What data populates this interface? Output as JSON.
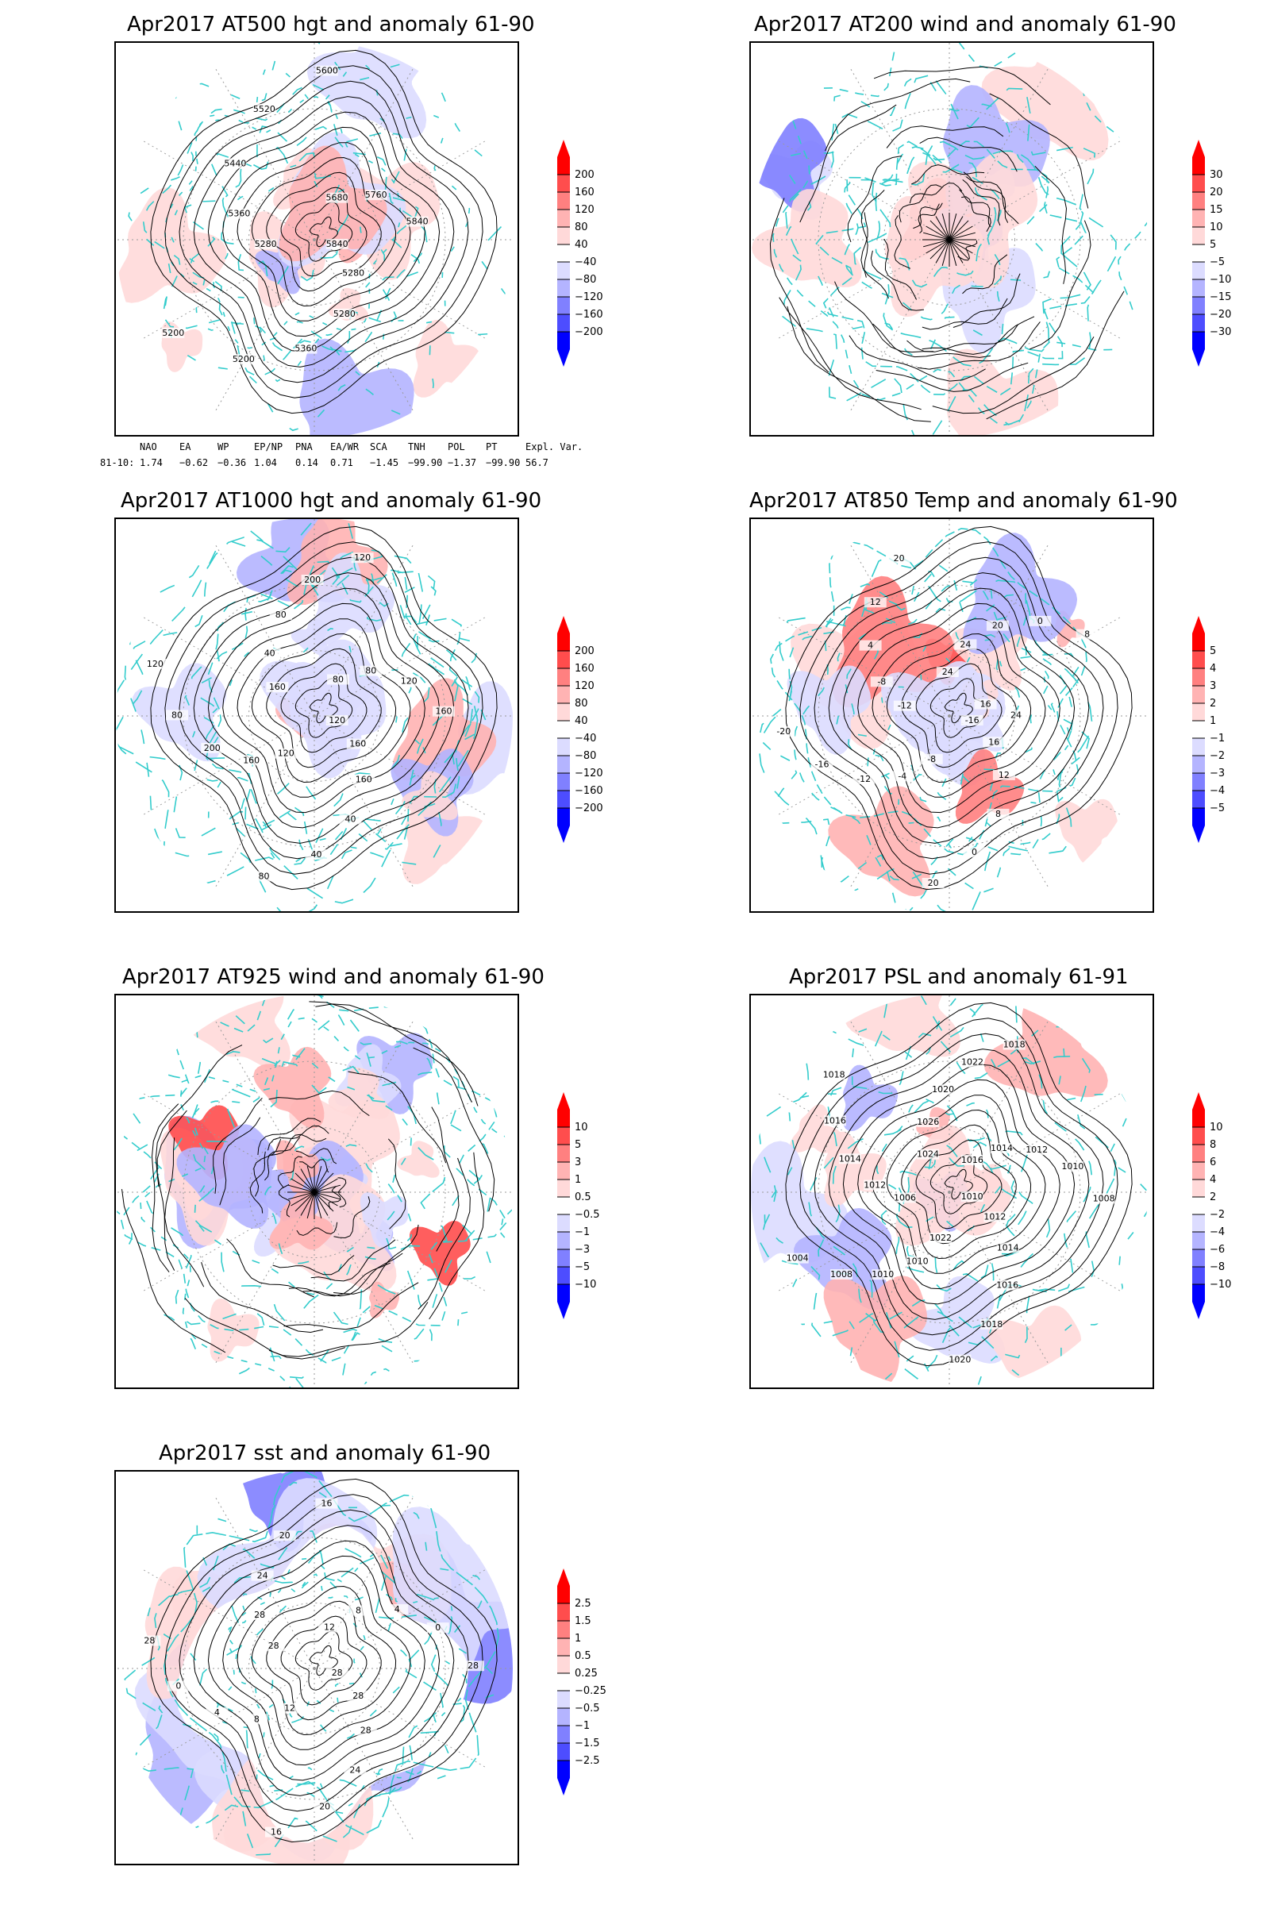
{
  "colors": {
    "coast": "#33cccc",
    "contour": "#000000",
    "pos": [
      "#ffd9d9",
      "#ffb3b3",
      "#ff8080",
      "#ff4d4d",
      "#ff0000"
    ],
    "neg": [
      "#dcdcff",
      "#b4b4ff",
      "#8080ff",
      "#4d4dff",
      "#0000ff"
    ],
    "grid": "#9a9a9a"
  },
  "panels": [
    {
      "title": "Apr2017 AT500 hgt and anomaly 61-90",
      "kind": "contour",
      "colorbar": [
        "200",
        "160",
        "120",
        "80",
        "40",
        "−40",
        "−80",
        "−120",
        "−160",
        "−200"
      ],
      "contour_labels": [
        "5840",
        "5280",
        "5280",
        "5360",
        "5200",
        "5200",
        "5280",
        "5360",
        "5440",
        "5520",
        "5600",
        "5680",
        "5760",
        "5840"
      ]
    },
    {
      "title": "Apr2017 AT200 wind and anomaly 61-90",
      "kind": "stream",
      "colorbar": [
        "30",
        "20",
        "15",
        "10",
        "5",
        "−5",
        "−10",
        "−15",
        "−20",
        "−30"
      ],
      "contour_labels": []
    },
    {
      "title": "Apr2017 AT1000 hgt and anomaly 61-90",
      "kind": "contour",
      "colorbar": [
        "200",
        "160",
        "120",
        "80",
        "40",
        "−40",
        "−80",
        "−120",
        "−160",
        "−200"
      ],
      "contour_labels": [
        "120",
        "160",
        "160",
        "40",
        "40",
        "80",
        "120",
        "160",
        "200",
        "80",
        "120",
        "160",
        "40",
        "80",
        "200",
        "120",
        "80",
        "80",
        "120",
        "160"
      ]
    },
    {
      "title": "Apr2017 AT850 Temp and anomaly 61-90",
      "kind": "contour",
      "colorbar": [
        "5",
        "4",
        "3",
        "2",
        "1",
        "−1",
        "−2",
        "−3",
        "−4",
        "−5"
      ],
      "contour_labels": [
        "-16",
        "16",
        "12",
        "8",
        "0",
        "20",
        "-8",
        "-4",
        "-12",
        "-16",
        "-20",
        "-12",
        "-8",
        "4",
        "12",
        "20",
        "24",
        "24",
        "20",
        "0",
        "8",
        "16",
        "24"
      ]
    },
    {
      "title": "Apr2017 AT925 wind and anomaly 61-90",
      "kind": "stream",
      "colorbar": [
        "10",
        "5",
        "3",
        "1",
        "0.5",
        "−0.5",
        "−1",
        "−3",
        "−5",
        "−10"
      ],
      "contour_labels": []
    },
    {
      "title": "Apr2017 PSL and anomaly 61-91",
      "kind": "contour",
      "colorbar": [
        "10",
        "8",
        "6",
        "4",
        "2",
        "−2",
        "−4",
        "−6",
        "−8",
        "−10"
      ],
      "contour_labels": [
        "1010",
        "1012",
        "1014",
        "1016",
        "1018",
        "1020",
        "1022",
        "1010",
        "1010",
        "1008",
        "1004",
        "1006",
        "1012",
        "1014",
        "1016",
        "1018",
        "1024",
        "1026",
        "1020",
        "1022",
        "1018",
        "1016",
        "1014",
        "1012",
        "1010",
        "1008"
      ]
    },
    {
      "title": "Apr2017 sst and anomaly 61-90",
      "kind": "contour",
      "colorbar": [
        "2.5",
        "1.5",
        "1",
        "0.5",
        "0.25",
        "−0.25",
        "−0.5",
        "−1",
        "−1.5",
        "−2.5"
      ],
      "contour_labels": [
        "28",
        "28",
        "28",
        "24",
        "20",
        "16",
        "12",
        "8",
        "4",
        "0",
        "28",
        "28",
        "28",
        "24",
        "20",
        "16",
        "12",
        "8",
        "4",
        "0",
        "28"
      ]
    }
  ],
  "indices": {
    "header": [
      "NAO",
      "EA",
      "WP",
      "EP/NP",
      "PNA",
      "EA/WR",
      "SCA",
      "TNH",
      "POL",
      "PT",
      "Expl. Var."
    ],
    "row_label": "81-10:",
    "values": [
      "1.74",
      "−0.62",
      "−0.36",
      "1.04",
      "0.14",
      "0.71",
      "−1.45",
      "−99.90",
      "−1.37",
      "−99.90",
      "56.7"
    ]
  }
}
